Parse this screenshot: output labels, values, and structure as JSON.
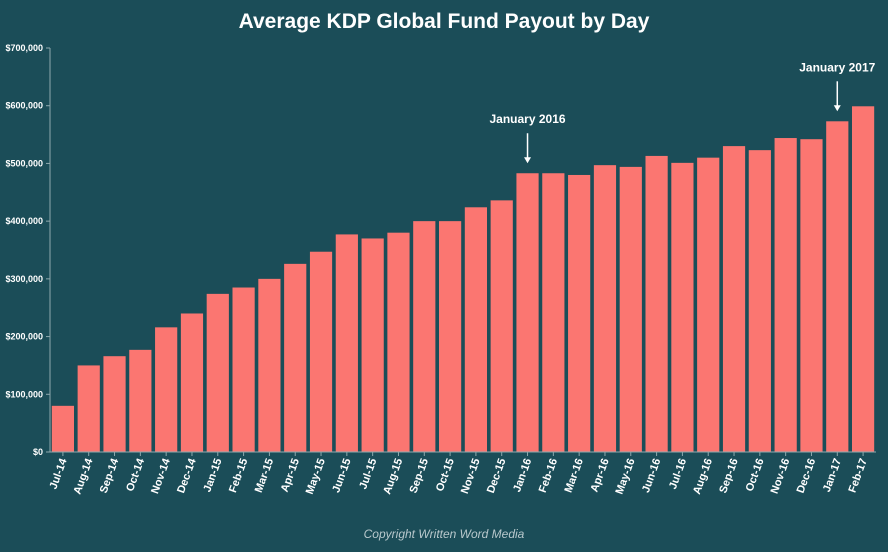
{
  "chart_data": {
    "type": "bar",
    "title": "Average KDP Global Fund Payout by Day",
    "xlabel": "",
    "ylabel": "",
    "ylim": [
      0,
      700000
    ],
    "yticks": [
      "$0",
      "$100,000",
      "$200,000",
      "$300,000",
      "$400,000",
      "$500,000",
      "$600,000",
      "$700,000"
    ],
    "ytick_values": [
      0,
      100000,
      200000,
      300000,
      400000,
      500000,
      600000,
      700000
    ],
    "grid": false,
    "categories": [
      "Jul-14",
      "Aug-14",
      "Sep-14",
      "Oct-14",
      "Nov-14",
      "Dec-14",
      "Jan-15",
      "Feb-15",
      "Mar-15",
      "Apr-15",
      "May-15",
      "Jun-15",
      "Jul-15",
      "Aug-15",
      "Sep-15",
      "Oct-15",
      "Nov-15",
      "Dec-15",
      "Jan-16",
      "Feb-16",
      "Mar-16",
      "Apr-16",
      "May-16",
      "Jun-16",
      "Jul-16",
      "Aug-16",
      "Sep-16",
      "Oct-16",
      "Nov-16",
      "Dec-16",
      "Jan-17",
      "Feb-17"
    ],
    "values": [
      80000,
      150000,
      166000,
      177000,
      216000,
      240000,
      274000,
      285000,
      300000,
      326000,
      347000,
      377000,
      370000,
      380000,
      400000,
      400000,
      424000,
      436000,
      483000,
      483000,
      480000,
      497000,
      494000,
      513000,
      501000,
      510000,
      530000,
      523000,
      544000,
      542000,
      573000,
      599000
    ],
    "annotations": [
      {
        "text": "January 2016",
        "category": "Jan-16"
      },
      {
        "text": "January 2017",
        "category": "Jan-17"
      }
    ]
  },
  "colors": {
    "background": "#1b4d58",
    "bar": "#fb7671",
    "text": "#ffffff",
    "footer": "#b8c8cc"
  },
  "footer": "Copyright Written Word Media"
}
